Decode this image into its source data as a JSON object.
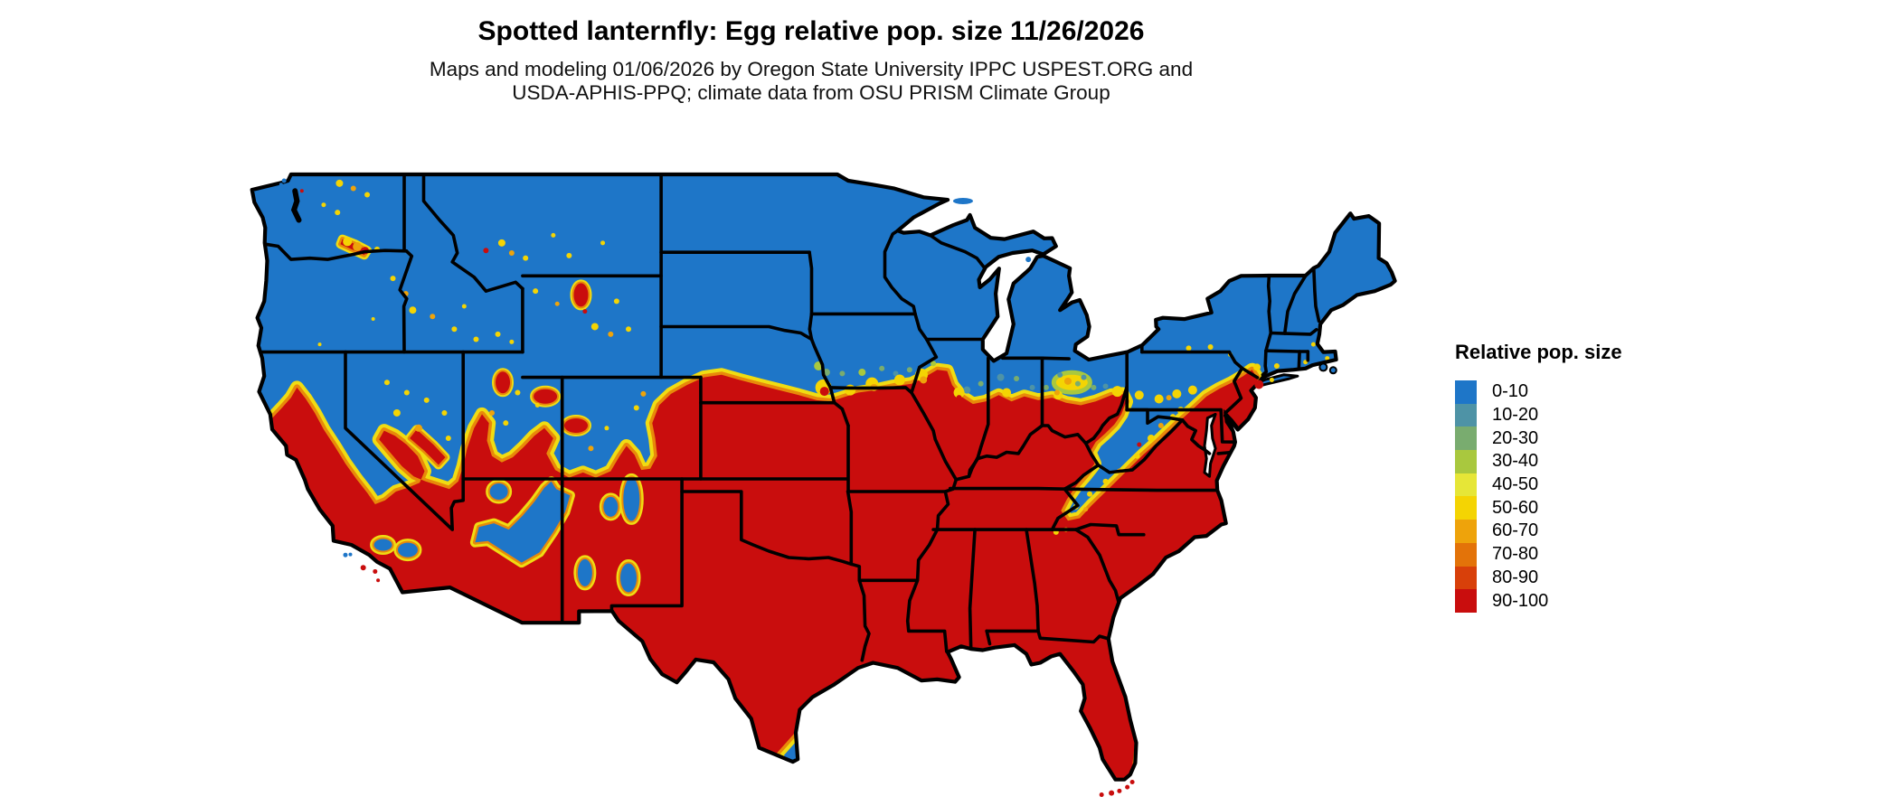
{
  "header": {
    "title": "Spotted lanternfly: Egg relative pop. size 11/26/2026",
    "subtitle_line1": "Maps and modeling 01/06/2026 by Oregon State University IPPC USPEST.ORG and",
    "subtitle_line2": "USDA-APHIS-PPQ; climate data from OSU PRISM Climate Group"
  },
  "legend": {
    "title": "Relative pop. size",
    "items": [
      {
        "label": "0-10",
        "color": "#1E76C8"
      },
      {
        "label": "10-20",
        "color": "#4E93A6"
      },
      {
        "label": "20-30",
        "color": "#79AC6F"
      },
      {
        "label": "30-40",
        "color": "#A9C83E"
      },
      {
        "label": "40-50",
        "color": "#E6E637"
      },
      {
        "label": "50-60",
        "color": "#F4D403"
      },
      {
        "label": "60-70",
        "color": "#EEA30B"
      },
      {
        "label": "70-80",
        "color": "#E37309"
      },
      {
        "label": "80-90",
        "color": "#D8400A"
      },
      {
        "label": "90-100",
        "color": "#C90D0D"
      }
    ]
  },
  "map_colors": {
    "low": "#1E76C8",
    "high": "#C90D0D",
    "band_yellow": "#F0DC12",
    "band_orange": "#E8890A",
    "teal": "#4E93A6",
    "green": "#79AC6F",
    "ygreen": "#A9C83E",
    "yellow": "#F4D403",
    "orange": "#EEA30B",
    "orange2": "#E37309",
    "redor": "#D8400A",
    "outline": "#000000",
    "water": "#FFFFFF"
  }
}
